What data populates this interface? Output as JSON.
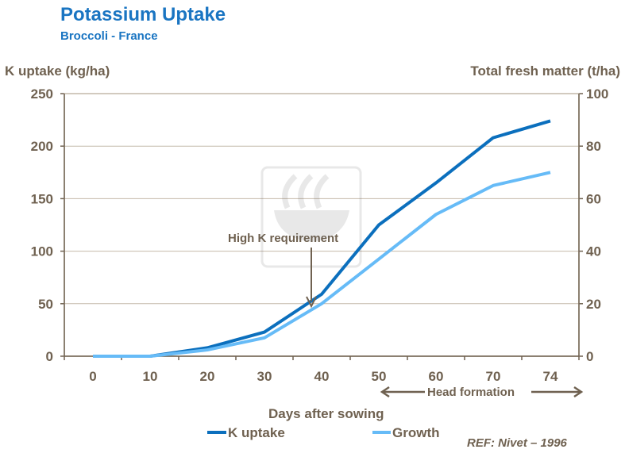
{
  "chart_data": {
    "type": "line",
    "title": "Potassium Uptake",
    "subtitle": "Broccoli  - France",
    "xlabel": "Days after sowing",
    "ylabel_left": "K uptake (kg/ha)",
    "ylabel_right": "Total fresh matter (t/ha)",
    "categories": [
      "0",
      "10",
      "20",
      "30",
      "40",
      "50",
      "60",
      "70",
      "74"
    ],
    "ylim_left": [
      0,
      250
    ],
    "yticks_left": [
      0,
      50,
      100,
      150,
      200,
      250
    ],
    "ylim_right": [
      0,
      100
    ],
    "yticks_right": [
      0,
      20,
      40,
      60,
      80,
      100
    ],
    "grid": true,
    "legend_position": "bottom",
    "series": [
      {
        "name": "K uptake",
        "axis": "left",
        "color": "#0b6fbd",
        "values": [
          0,
          0,
          8,
          23,
          59,
          125,
          165,
          208,
          224
        ]
      },
      {
        "name": "Growth",
        "axis": "right",
        "color": "#66bbf7",
        "values": [
          0,
          0,
          2.4,
          7,
          20,
          37,
          54,
          65,
          70
        ]
      }
    ],
    "annotations": [
      {
        "text": "High K requirement",
        "at_category": "40"
      },
      {
        "text": "Head formation",
        "span": [
          "50",
          "74"
        ]
      }
    ],
    "reference": "REF: Nivet – 1996"
  }
}
